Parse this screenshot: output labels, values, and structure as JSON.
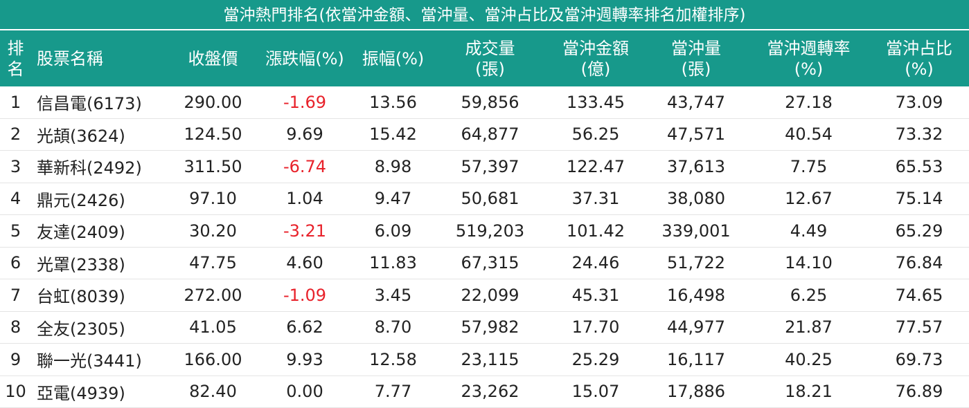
{
  "title": "當沖熱門排名(依當沖金額、當沖量、當沖占比及當沖週轉率排名加權排序)",
  "table": {
    "headers": [
      [
        "排",
        "名"
      ],
      [
        "股票名稱"
      ],
      [
        "收盤價"
      ],
      [
        "漲跌幅(%)"
      ],
      [
        "振幅(%)"
      ],
      [
        "成交量",
        "(張)"
      ],
      [
        "當沖金額",
        "(億)"
      ],
      [
        "當沖量",
        "(張)"
      ],
      [
        "當沖週轉率",
        "(%)"
      ],
      [
        "當沖占比",
        "(%)"
      ]
    ],
    "rows": [
      [
        "1",
        "信昌電(6173)",
        "290.00",
        "-1.69",
        "13.56",
        "59,856",
        "133.45",
        "43,747",
        "27.18",
        "73.09"
      ],
      [
        "2",
        "光頡(3624)",
        "124.50",
        "9.69",
        "15.42",
        "64,877",
        "56.25",
        "47,571",
        "40.54",
        "73.32"
      ],
      [
        "3",
        "華新科(2492)",
        "311.50",
        "-6.74",
        "8.98",
        "57,397",
        "122.47",
        "37,613",
        "7.75",
        "65.53"
      ],
      [
        "4",
        "鼎元(2426)",
        "97.10",
        "1.04",
        "9.47",
        "50,681",
        "37.31",
        "38,080",
        "12.67",
        "75.14"
      ],
      [
        "5",
        "友達(2409)",
        "30.20",
        "-3.21",
        "6.09",
        "519,203",
        "101.42",
        "339,001",
        "4.49",
        "65.29"
      ],
      [
        "6",
        "光罩(2338)",
        "47.75",
        "4.60",
        "11.83",
        "67,315",
        "24.46",
        "51,722",
        "14.10",
        "76.84"
      ],
      [
        "7",
        "台虹(8039)",
        "272.00",
        "-1.09",
        "3.45",
        "22,099",
        "45.31",
        "16,498",
        "6.25",
        "74.65"
      ],
      [
        "8",
        "全友(2305)",
        "41.05",
        "6.62",
        "8.70",
        "57,982",
        "17.70",
        "44,977",
        "21.87",
        "77.57"
      ],
      [
        "9",
        "聯一光(3441)",
        "166.00",
        "9.93",
        "12.58",
        "23,115",
        "25.29",
        "16,117",
        "40.25",
        "69.73"
      ],
      [
        "10",
        "亞電(4939)",
        "82.40",
        "0.00",
        "7.77",
        "23,262",
        "15.07",
        "17,886",
        "18.21",
        "76.89"
      ]
    ]
  }
}
